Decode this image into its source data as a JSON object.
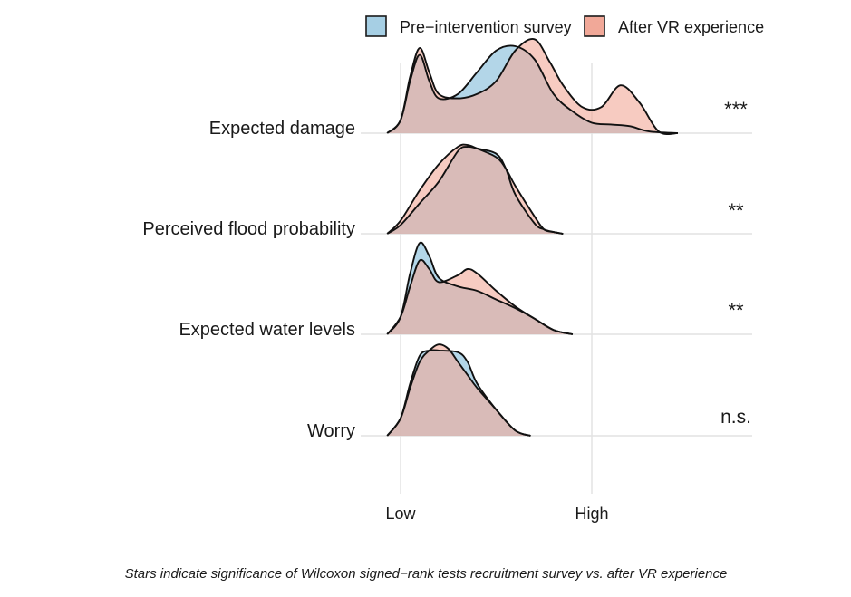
{
  "chart_data": {
    "type": "ridgeline density",
    "legend": {
      "position": "top",
      "entries": [
        {
          "name": "Pre−intervention survey",
          "color": "#a6cfe4"
        },
        {
          "name": "After VR experience",
          "color": "#f1a898"
        }
      ]
    },
    "x_ticks": [
      "Low",
      "High"
    ],
    "gridlines": "vertical",
    "overlap_color": "#adb3b9",
    "categories": [
      "Expected damage",
      "Perceived flood probability",
      "Expected water levels",
      "Worry"
    ],
    "significance": [
      "***",
      "**",
      "**",
      "n.s."
    ],
    "x_domain": [
      -0.07,
      1.45
    ],
    "ridges": [
      {
        "label": "Expected damage",
        "series": [
          {
            "name": "Pre−intervention survey",
            "x": [
              -0.07,
              0.0,
              0.05,
              0.1,
              0.15,
              0.2,
              0.3,
              0.4,
              0.5,
              0.6,
              0.7,
              0.8,
              0.9,
              1.0,
              1.1,
              1.2,
              1.3,
              1.45
            ],
            "y": [
              0.0,
              0.15,
              0.6,
              0.9,
              0.6,
              0.4,
              0.45,
              0.7,
              0.95,
              1.0,
              0.85,
              0.45,
              0.25,
              0.12,
              0.1,
              0.08,
              0.02,
              0.0
            ]
          },
          {
            "name": "After VR experience",
            "x": [
              -0.07,
              0.0,
              0.05,
              0.1,
              0.15,
              0.2,
              0.3,
              0.4,
              0.5,
              0.6,
              0.7,
              0.78,
              0.85,
              0.95,
              1.05,
              1.15,
              1.25,
              1.35,
              1.45
            ],
            "y": [
              0.0,
              0.15,
              0.65,
              0.98,
              0.7,
              0.45,
              0.4,
              0.45,
              0.6,
              0.95,
              1.08,
              0.82,
              0.55,
              0.3,
              0.3,
              0.55,
              0.35,
              0.02,
              0.0
            ]
          }
        ]
      },
      {
        "label": "Perceived flood probability",
        "series": [
          {
            "name": "Pre−intervention survey",
            "x": [
              -0.07,
              0.0,
              0.1,
              0.2,
              0.3,
              0.35,
              0.4,
              0.5,
              0.55,
              0.6,
              0.7,
              0.75,
              0.8,
              0.85
            ],
            "y": [
              0.0,
              0.1,
              0.35,
              0.6,
              0.95,
              1.0,
              0.98,
              0.92,
              0.75,
              0.45,
              0.12,
              0.05,
              0.02,
              0.0
            ]
          },
          {
            "name": "After VR experience",
            "x": [
              -0.07,
              0.0,
              0.1,
              0.2,
              0.3,
              0.35,
              0.4,
              0.5,
              0.55,
              0.6,
              0.7,
              0.75,
              0.8,
              0.85
            ],
            "y": [
              0.0,
              0.15,
              0.5,
              0.8,
              1.0,
              1.02,
              0.98,
              0.88,
              0.75,
              0.55,
              0.2,
              0.05,
              0.02,
              0.0
            ]
          }
        ]
      },
      {
        "label": "Expected water levels",
        "series": [
          {
            "name": "Pre−intervention survey",
            "x": [
              -0.07,
              0.0,
              0.05,
              0.1,
              0.15,
              0.2,
              0.3,
              0.4,
              0.5,
              0.6,
              0.7,
              0.8,
              0.9
            ],
            "y": [
              0.0,
              0.2,
              0.7,
              1.05,
              0.9,
              0.65,
              0.55,
              0.5,
              0.4,
              0.3,
              0.18,
              0.05,
              0.0
            ]
          },
          {
            "name": "After VR experience",
            "x": [
              -0.07,
              0.0,
              0.05,
              0.1,
              0.15,
              0.2,
              0.3,
              0.35,
              0.4,
              0.5,
              0.6,
              0.7,
              0.8,
              0.9
            ],
            "y": [
              0.0,
              0.2,
              0.55,
              0.85,
              0.75,
              0.6,
              0.68,
              0.75,
              0.7,
              0.5,
              0.32,
              0.18,
              0.05,
              0.0
            ]
          }
        ]
      },
      {
        "label": "Worry",
        "series": [
          {
            "name": "Pre−intervention survey",
            "x": [
              -0.07,
              0.0,
              0.05,
              0.1,
              0.15,
              0.2,
              0.3,
              0.35,
              0.4,
              0.5,
              0.6,
              0.68
            ],
            "y": [
              0.0,
              0.2,
              0.6,
              0.92,
              0.98,
              0.98,
              0.96,
              0.85,
              0.6,
              0.3,
              0.06,
              0.0
            ]
          },
          {
            "name": "After VR experience",
            "x": [
              -0.07,
              0.0,
              0.05,
              0.1,
              0.15,
              0.2,
              0.25,
              0.3,
              0.35,
              0.4,
              0.5,
              0.6,
              0.68
            ],
            "y": [
              0.0,
              0.2,
              0.55,
              0.85,
              0.98,
              1.05,
              1.0,
              0.85,
              0.7,
              0.55,
              0.3,
              0.06,
              0.0
            ]
          }
        ]
      }
    ]
  },
  "caption": "Stars indicate significance of Wilcoxon signed−rank tests recruitment survey vs. after VR experience"
}
